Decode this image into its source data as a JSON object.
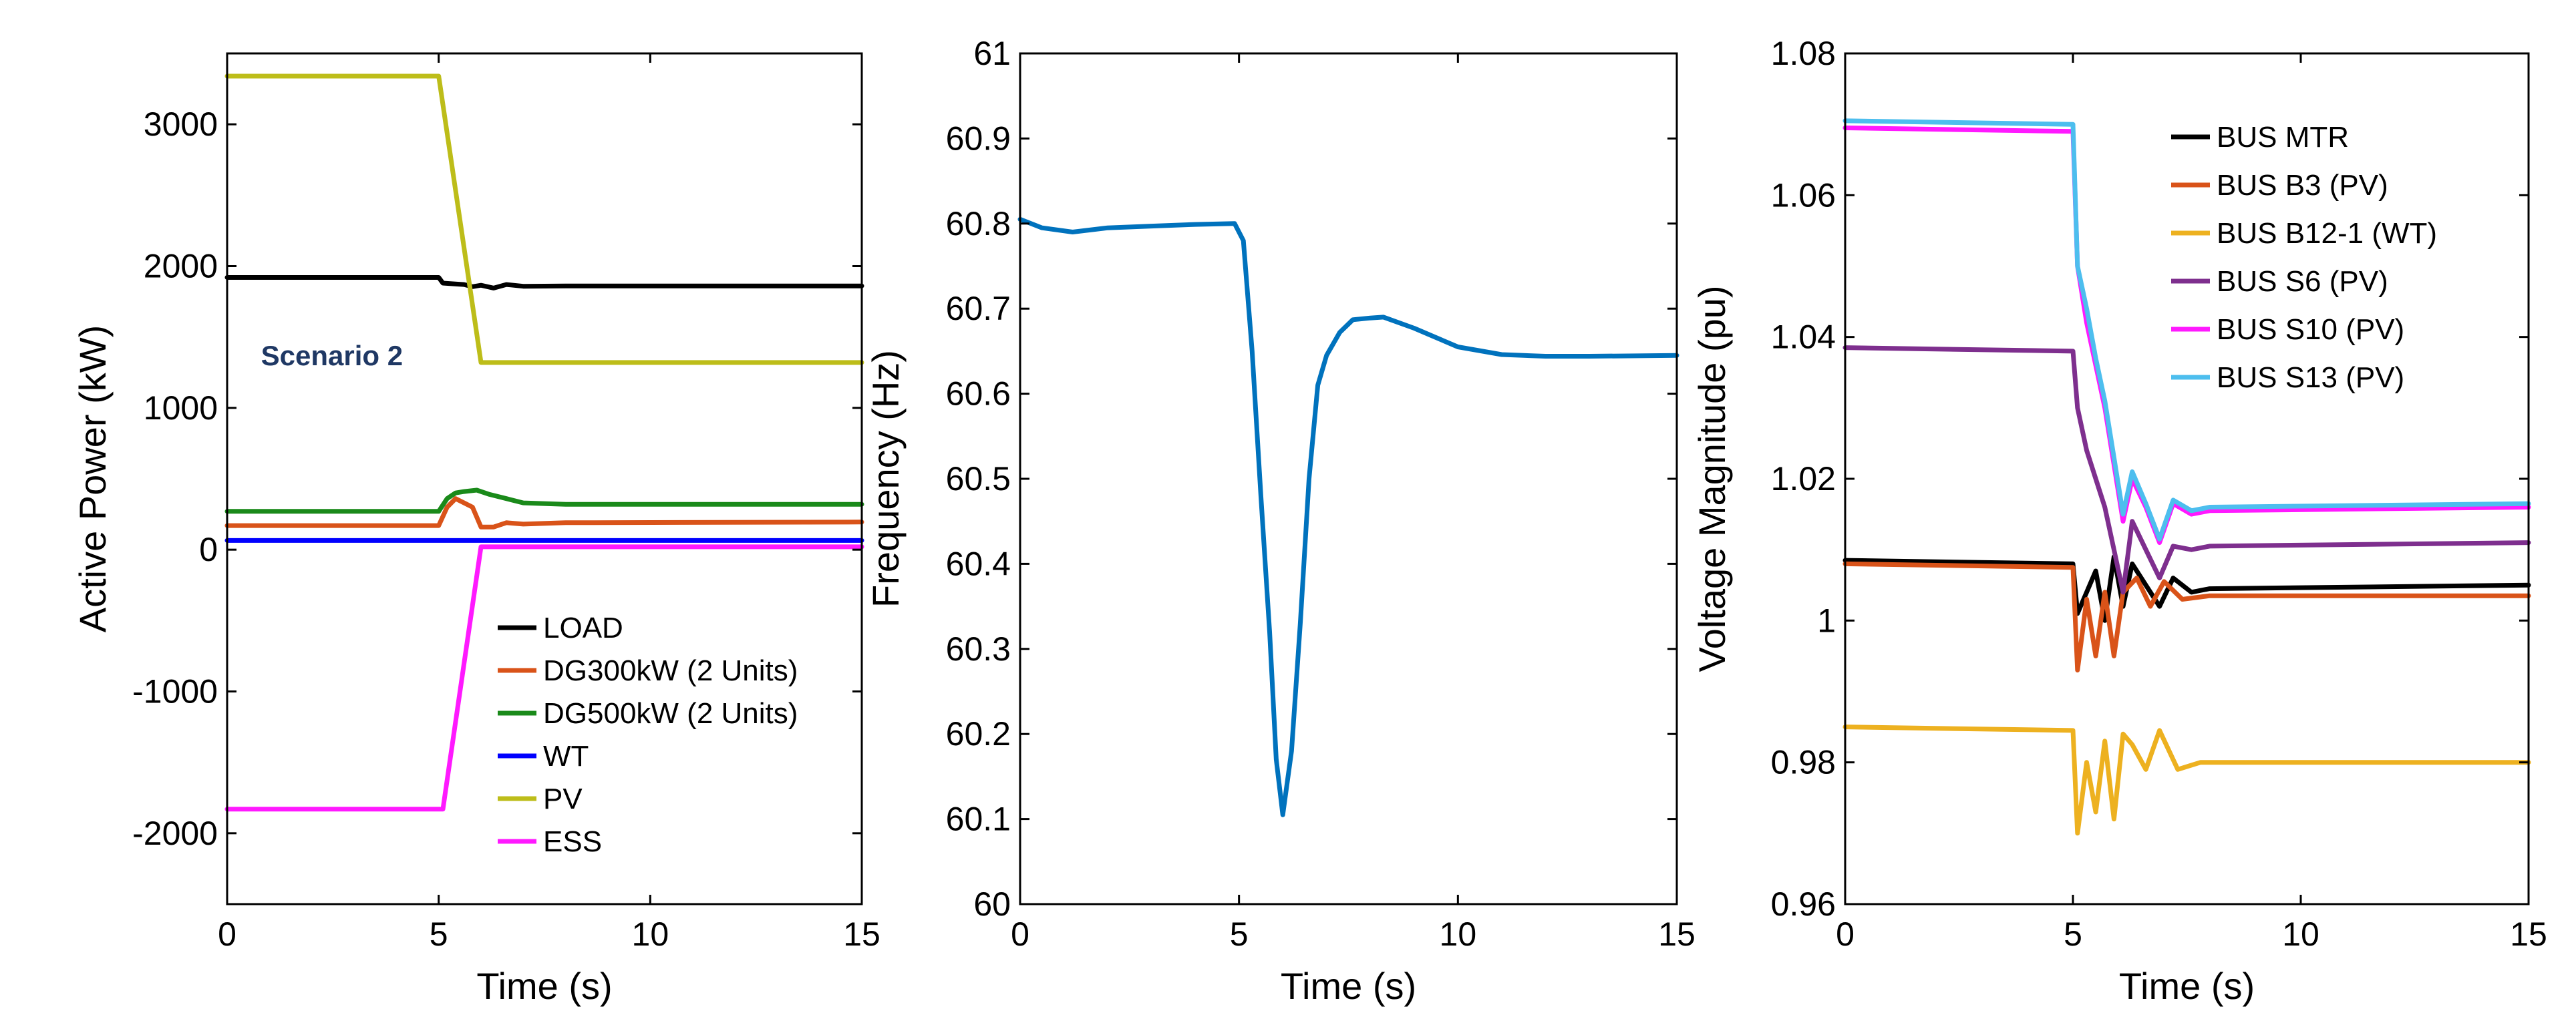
{
  "chart_data": [
    {
      "type": "line",
      "xlabel": "Time (s)",
      "ylabel": "Active Power (kW)",
      "xlim": [
        0,
        15
      ],
      "ylim": [
        -2500,
        3500
      ],
      "xticks": [
        0,
        5,
        10,
        15
      ],
      "yticks": [
        -2000,
        -1000,
        0,
        1000,
        2000,
        3000
      ],
      "xtick_labels": [
        "0",
        "5",
        "10",
        "15"
      ],
      "ytick_labels": [
        "-2000",
        "-1000",
        "0",
        "1000",
        "2000",
        "3000"
      ],
      "grid": false,
      "legend_position": "bottom-right",
      "annotation": {
        "text": "Scenario 2",
        "x": 0.8,
        "y": 1300,
        "color": "#1f3864"
      },
      "series": [
        {
          "name": "LOAD",
          "color": "#000000",
          "points": [
            [
              0,
              1920
            ],
            [
              5.0,
              1920
            ],
            [
              5.1,
              1880
            ],
            [
              5.6,
              1870
            ],
            [
              5.8,
              1855
            ],
            [
              6.0,
              1865
            ],
            [
              6.3,
              1845
            ],
            [
              6.6,
              1870
            ],
            [
              7.0,
              1858
            ],
            [
              8,
              1860
            ],
            [
              15,
              1860
            ]
          ]
        },
        {
          "name": "DG300kW (2 Units)",
          "color": "#d95319",
          "points": [
            [
              0,
              170
            ],
            [
              5.0,
              170
            ],
            [
              5.2,
              300
            ],
            [
              5.4,
              360
            ],
            [
              5.6,
              330
            ],
            [
              5.8,
              300
            ],
            [
              6.0,
              160
            ],
            [
              6.3,
              160
            ],
            [
              6.6,
              190
            ],
            [
              7.0,
              180
            ],
            [
              8,
              190
            ],
            [
              15,
              195
            ]
          ]
        },
        {
          "name": "DG500kW (2 Units)",
          "color": "#1a8a1a",
          "points": [
            [
              0,
              270
            ],
            [
              5.0,
              270
            ],
            [
              5.2,
              360
            ],
            [
              5.4,
              400
            ],
            [
              5.6,
              410
            ],
            [
              5.9,
              420
            ],
            [
              6.2,
              390
            ],
            [
              6.6,
              360
            ],
            [
              7.0,
              330
            ],
            [
              8,
              320
            ],
            [
              15,
              320
            ]
          ]
        },
        {
          "name": "WT",
          "color": "#0000ff",
          "points": [
            [
              0,
              65
            ],
            [
              15,
              65
            ]
          ]
        },
        {
          "name": "PV",
          "color": "#bdbd19",
          "points": [
            [
              0,
              3340
            ],
            [
              5.0,
              3340
            ],
            [
              6.0,
              1320
            ],
            [
              15,
              1320
            ]
          ]
        },
        {
          "name": "ESS",
          "color": "#ff19ff",
          "points": [
            [
              0,
              -1830
            ],
            [
              5.1,
              -1830
            ],
            [
              6.0,
              20
            ],
            [
              15,
              20
            ]
          ]
        }
      ]
    },
    {
      "type": "line",
      "xlabel": "Time (s)",
      "ylabel": "Frequency (Hz)",
      "xlim": [
        0,
        15
      ],
      "ylim": [
        60,
        61
      ],
      "xticks": [
        0,
        5,
        10,
        15
      ],
      "yticks": [
        60,
        60.1,
        60.2,
        60.3,
        60.4,
        60.5,
        60.6,
        60.7,
        60.8,
        60.9,
        61
      ],
      "xtick_labels": [
        "0",
        "5",
        "10",
        "15"
      ],
      "ytick_labels": [
        "60",
        "60.1",
        "60.2",
        "60.3",
        "60.4",
        "60.5",
        "60.6",
        "60.7",
        "60.8",
        "60.9",
        "61"
      ],
      "grid": false,
      "series": [
        {
          "name": "Frequency",
          "color": "#0072bd",
          "points": [
            [
              0,
              60.805
            ],
            [
              0.5,
              60.795
            ],
            [
              1.2,
              60.79
            ],
            [
              2,
              60.795
            ],
            [
              3,
              60.797
            ],
            [
              4,
              60.799
            ],
            [
              4.9,
              60.8
            ],
            [
              5.1,
              60.78
            ],
            [
              5.3,
              60.65
            ],
            [
              5.5,
              60.48
            ],
            [
              5.7,
              60.32
            ],
            [
              5.85,
              60.17
            ],
            [
              6.0,
              60.105
            ],
            [
              6.2,
              60.18
            ],
            [
              6.4,
              60.33
            ],
            [
              6.6,
              60.5
            ],
            [
              6.8,
              60.61
            ],
            [
              7.0,
              60.645
            ],
            [
              7.3,
              60.672
            ],
            [
              7.6,
              60.687
            ],
            [
              8.0,
              60.689
            ],
            [
              8.3,
              60.69
            ],
            [
              9,
              60.677
            ],
            [
              10,
              60.655
            ],
            [
              11,
              60.646
            ],
            [
              12,
              60.644
            ],
            [
              13,
              60.644
            ],
            [
              15,
              60.645
            ]
          ]
        }
      ]
    },
    {
      "type": "line",
      "xlabel": "Time (s)",
      "ylabel": "Voltage Magnitude (pu)",
      "xlim": [
        0,
        15
      ],
      "ylim": [
        0.96,
        1.08
      ],
      "xticks": [
        0,
        5,
        10,
        15
      ],
      "yticks": [
        0.96,
        0.98,
        1.0,
        1.02,
        1.04,
        1.06,
        1.08
      ],
      "xtick_labels": [
        "0",
        "5",
        "10",
        "15"
      ],
      "ytick_labels": [
        "0.96",
        "0.98",
        "1",
        "1.02",
        "1.04",
        "1.06",
        "1.08"
      ],
      "grid": false,
      "legend_position": "top-right",
      "series": [
        {
          "name": "BUS MTR",
          "color": "#000000",
          "points": [
            [
              0,
              1.0085
            ],
            [
              5.0,
              1.008
            ],
            [
              5.1,
              1.001
            ],
            [
              5.3,
              1.004
            ],
            [
              5.5,
              1.007
            ],
            [
              5.7,
              1.0
            ],
            [
              5.9,
              1.009
            ],
            [
              6.1,
              1.002
            ],
            [
              6.3,
              1.008
            ],
            [
              6.6,
              1.005
            ],
            [
              6.9,
              1.002
            ],
            [
              7.2,
              1.006
            ],
            [
              7.6,
              1.004
            ],
            [
              8,
              1.0045
            ],
            [
              15,
              1.005
            ]
          ]
        },
        {
          "name": "BUS B3 (PV)",
          "color": "#d95319",
          "points": [
            [
              0,
              1.008
            ],
            [
              5.0,
              1.0075
            ],
            [
              5.1,
              0.993
            ],
            [
              5.3,
              1.003
            ],
            [
              5.5,
              0.995
            ],
            [
              5.7,
              1.004
            ],
            [
              5.9,
              0.995
            ],
            [
              6.1,
              1.004
            ],
            [
              6.4,
              1.006
            ],
            [
              6.7,
              1.002
            ],
            [
              7.0,
              1.0055
            ],
            [
              7.4,
              1.003
            ],
            [
              8,
              1.0035
            ],
            [
              15,
              1.0035
            ]
          ]
        },
        {
          "name": "BUS B12-1 (WT)",
          "color": "#edb120",
          "points": [
            [
              0,
              0.985
            ],
            [
              5.0,
              0.9845
            ],
            [
              5.1,
              0.97
            ],
            [
              5.3,
              0.98
            ],
            [
              5.5,
              0.973
            ],
            [
              5.7,
              0.983
            ],
            [
              5.9,
              0.972
            ],
            [
              6.1,
              0.984
            ],
            [
              6.3,
              0.9825
            ],
            [
              6.6,
              0.979
            ],
            [
              6.9,
              0.9845
            ],
            [
              7.3,
              0.979
            ],
            [
              7.8,
              0.98
            ],
            [
              15,
              0.98
            ]
          ]
        },
        {
          "name": "BUS S6 (PV)",
          "color": "#7e2f8e",
          "points": [
            [
              0,
              1.0385
            ],
            [
              5.0,
              1.038
            ],
            [
              5.1,
              1.03
            ],
            [
              5.3,
              1.024
            ],
            [
              5.5,
              1.02
            ],
            [
              5.7,
              1.016
            ],
            [
              5.9,
              1.01
            ],
            [
              6.1,
              1.004
            ],
            [
              6.3,
              1.014
            ],
            [
              6.6,
              1.01
            ],
            [
              6.9,
              1.006
            ],
            [
              7.2,
              1.0105
            ],
            [
              7.6,
              1.01
            ],
            [
              8,
              1.0105
            ],
            [
              15,
              1.011
            ]
          ]
        },
        {
          "name": "BUS S10 (PV)",
          "color": "#ff19ff",
          "points": [
            [
              0,
              1.0695
            ],
            [
              5.0,
              1.069
            ],
            [
              5.1,
              1.05
            ],
            [
              5.3,
              1.042
            ],
            [
              5.5,
              1.036
            ],
            [
              5.7,
              1.03
            ],
            [
              5.9,
              1.022
            ],
            [
              6.1,
              1.014
            ],
            [
              6.3,
              1.02
            ],
            [
              6.6,
              1.016
            ],
            [
              6.9,
              1.011
            ],
            [
              7.2,
              1.0165
            ],
            [
              7.6,
              1.015
            ],
            [
              8,
              1.0155
            ],
            [
              15,
              1.016
            ]
          ]
        },
        {
          "name": "BUS S13 (PV)",
          "color": "#4dbeee",
          "points": [
            [
              0,
              1.0705
            ],
            [
              5.0,
              1.07
            ],
            [
              5.1,
              1.05
            ],
            [
              5.3,
              1.044
            ],
            [
              5.5,
              1.037
            ],
            [
              5.7,
              1.031
            ],
            [
              5.9,
              1.023
            ],
            [
              6.1,
              1.015
            ],
            [
              6.3,
              1.021
            ],
            [
              6.6,
              1.0165
            ],
            [
              6.9,
              1.0115
            ],
            [
              7.2,
              1.017
            ],
            [
              7.6,
              1.0155
            ],
            [
              8,
              1.016
            ],
            [
              15,
              1.0165
            ]
          ]
        }
      ]
    }
  ]
}
